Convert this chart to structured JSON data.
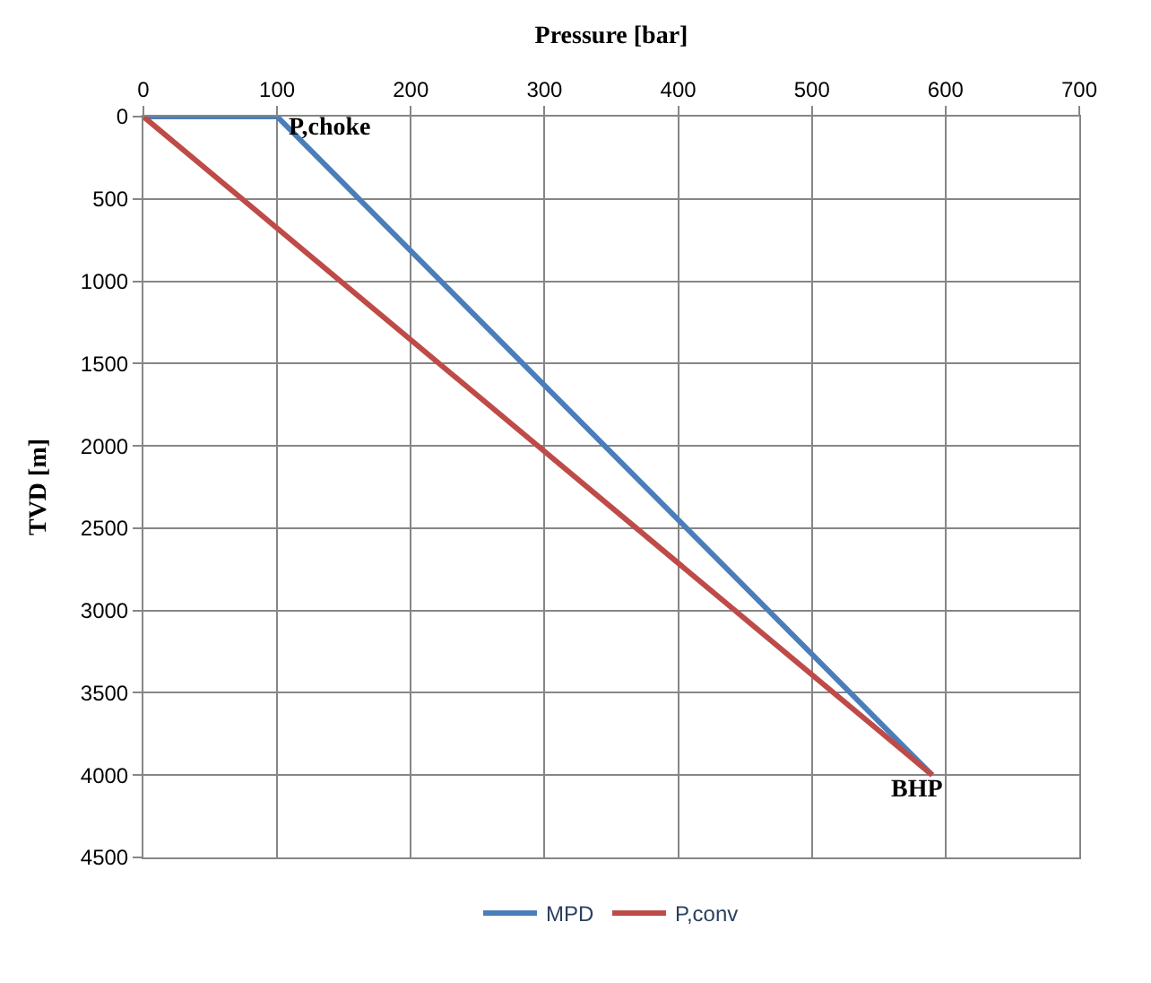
{
  "chart_data": {
    "type": "line",
    "xlabel": "Pressure [bar]",
    "ylabel": "TVD [m]",
    "xlim": [
      0,
      700
    ],
    "xticks": [
      0,
      100,
      200,
      300,
      400,
      500,
      600,
      700
    ],
    "ylim": [
      4500,
      0
    ],
    "yticks": [
      0,
      500,
      1000,
      1500,
      2000,
      2500,
      3000,
      3500,
      4000,
      4500
    ],
    "grid": true,
    "legend": "bottom",
    "marker": "none",
    "line_style": "solid",
    "series": [
      {
        "name": "MPD",
        "color": "#4a7ebb",
        "x": [
          0,
          100,
          590
        ],
        "values": [
          0,
          0,
          4000
        ]
      },
      {
        "name": "P,conv",
        "color": "#be4b48",
        "x": [
          0,
          590
        ],
        "values": [
          0,
          4000
        ]
      }
    ],
    "annotations": [
      {
        "text": "P,choke",
        "x": 100,
        "y": 0
      },
      {
        "text": "BHP",
        "x": 590,
        "y": 4000
      }
    ]
  }
}
